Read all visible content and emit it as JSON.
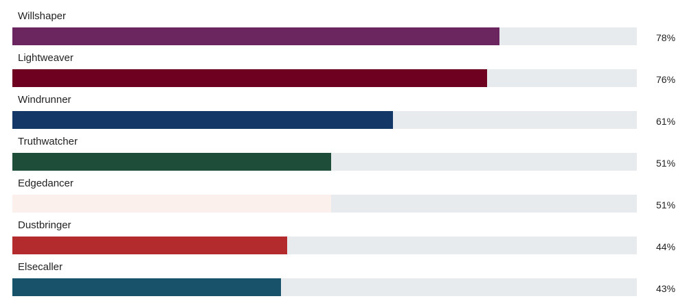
{
  "chart_data": {
    "type": "bar",
    "orientation": "horizontal",
    "categories": [
      "Willshaper",
      "Lightweaver",
      "Windrunner",
      "Truthwatcher",
      "Edgedancer",
      "Dustbringer",
      "Elsecaller"
    ],
    "values": [
      78,
      76,
      61,
      51,
      51,
      44,
      43
    ],
    "value_labels": [
      "78%",
      "76%",
      "61%",
      "51%",
      "51%",
      "44%",
      "43%"
    ],
    "colors": [
      "#6b2660",
      "#6e0020",
      "#133766",
      "#1e4d3a",
      "#fbf0ec",
      "#b32b2d",
      "#17526a"
    ],
    "track_color": "#e8ebee",
    "xlim": [
      0,
      100
    ],
    "title": "",
    "xlabel": "",
    "ylabel": ""
  }
}
